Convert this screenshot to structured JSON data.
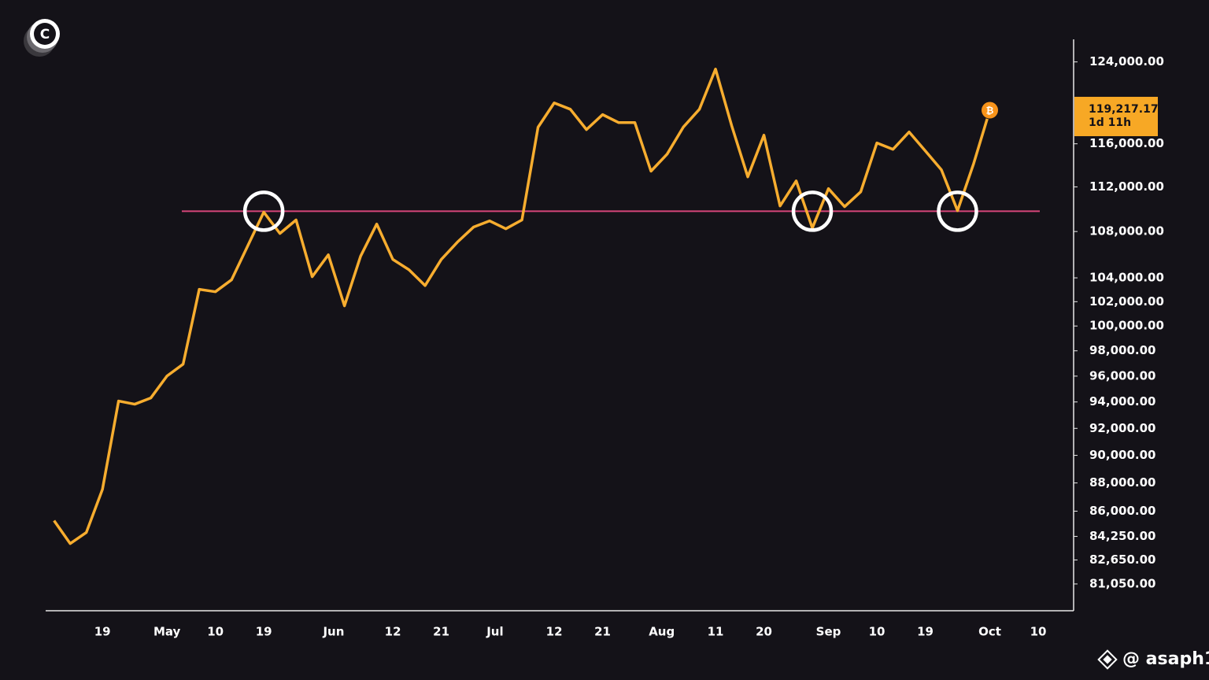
{
  "chart_data": {
    "type": "line",
    "x": [
      "04-10",
      "04-13",
      "04-16",
      "04-19",
      "04-22",
      "04-25",
      "04-28",
      "05-01",
      "05-04",
      "05-07",
      "05-10",
      "05-13",
      "05-16",
      "05-19",
      "05-22",
      "05-25",
      "05-28",
      "05-31",
      "06-03",
      "06-06",
      "06-09",
      "06-12",
      "06-15",
      "06-18",
      "06-21",
      "06-24",
      "06-27",
      "06-30",
      "07-03",
      "07-06",
      "07-09",
      "07-12",
      "07-15",
      "07-18",
      "07-21",
      "07-24",
      "07-27",
      "07-30",
      "08-02",
      "08-05",
      "08-08",
      "08-11",
      "08-14",
      "08-17",
      "08-20",
      "08-23",
      "08-26",
      "08-29",
      "09-01",
      "09-04",
      "09-07",
      "09-10",
      "09-13",
      "09-16",
      "09-19",
      "09-22",
      "09-25",
      "09-28",
      "10-01"
    ],
    "series": [
      {
        "color": "#f7ad2f",
        "values": [
          85340,
          83760,
          84520,
          87540,
          94070,
          93830,
          94310,
          96010,
          96940,
          103030,
          102830,
          103830,
          106730,
          109720,
          107830,
          109020,
          104100,
          105970,
          101660,
          105850,
          108660,
          105570,
          104690,
          103350,
          105570,
          107070,
          108390,
          108940,
          108240,
          109020,
          117580,
          119930,
          119310,
          117350,
          118790,
          118020,
          118020,
          113440,
          115030,
          117580,
          119310,
          123280,
          117730,
          112920,
          116820,
          110270,
          112550,
          108310,
          111840,
          110210,
          111550,
          116080,
          115480,
          117120,
          115340,
          113570,
          109850,
          114150,
          119217.17
        ]
      }
    ],
    "log_scale": true,
    "ylim": [
      79300,
      126300
    ],
    "yticks": [
      {
        "value": 124000,
        "label": "124,000.00"
      },
      {
        "value": 116000,
        "label": "116,000.00"
      },
      {
        "value": 112000,
        "label": "112,000.00"
      },
      {
        "value": 108000,
        "label": "108,000.00"
      },
      {
        "value": 104000,
        "label": "104,000.00"
      },
      {
        "value": 102000,
        "label": "102,000.00"
      },
      {
        "value": 100000,
        "label": "100,000.00"
      },
      {
        "value": 98000,
        "label": "98,000.00"
      },
      {
        "value": 96000,
        "label": "96,000.00"
      },
      {
        "value": 94000,
        "label": "94,000.00"
      },
      {
        "value": 92000,
        "label": "92,000.00"
      },
      {
        "value": 90000,
        "label": "90,000.00"
      },
      {
        "value": 88000,
        "label": "88,000.00"
      },
      {
        "value": 86000,
        "label": "86,000.00"
      },
      {
        "value": 84250,
        "label": "84,250.00"
      },
      {
        "value": 82650,
        "label": "82,650.00"
      },
      {
        "value": 81050,
        "label": "81,050.00"
      }
    ],
    "xlim": [
      "04-08",
      "10-16"
    ],
    "xticks": [
      {
        "value": "04-19",
        "label": "19"
      },
      {
        "value": "05-01",
        "label": "May"
      },
      {
        "value": "05-10",
        "label": "10"
      },
      {
        "value": "05-19",
        "label": "19"
      },
      {
        "value": "06-01",
        "label": "Jun"
      },
      {
        "value": "06-12",
        "label": "12"
      },
      {
        "value": "06-21",
        "label": "21"
      },
      {
        "value": "07-01",
        "label": "Jul"
      },
      {
        "value": "07-12",
        "label": "12"
      },
      {
        "value": "07-21",
        "label": "21"
      },
      {
        "value": "08-01",
        "label": "Aug"
      },
      {
        "value": "08-11",
        "label": "11"
      },
      {
        "value": "08-20",
        "label": "20"
      },
      {
        "value": "09-01",
        "label": "Sep"
      },
      {
        "value": "09-10",
        "label": "10"
      },
      {
        "value": "09-19",
        "label": "19"
      },
      {
        "value": "10-01",
        "label": "Oct"
      },
      {
        "value": "10-10",
        "label": "10"
      }
    ],
    "reference_line": {
      "value": 109800,
      "color": "#d6457a"
    },
    "circled_points": [
      13,
      47,
      56
    ],
    "last_price_label": "119,217.17",
    "countdown": "1d 11h",
    "watermark": "@ asaph1"
  }
}
